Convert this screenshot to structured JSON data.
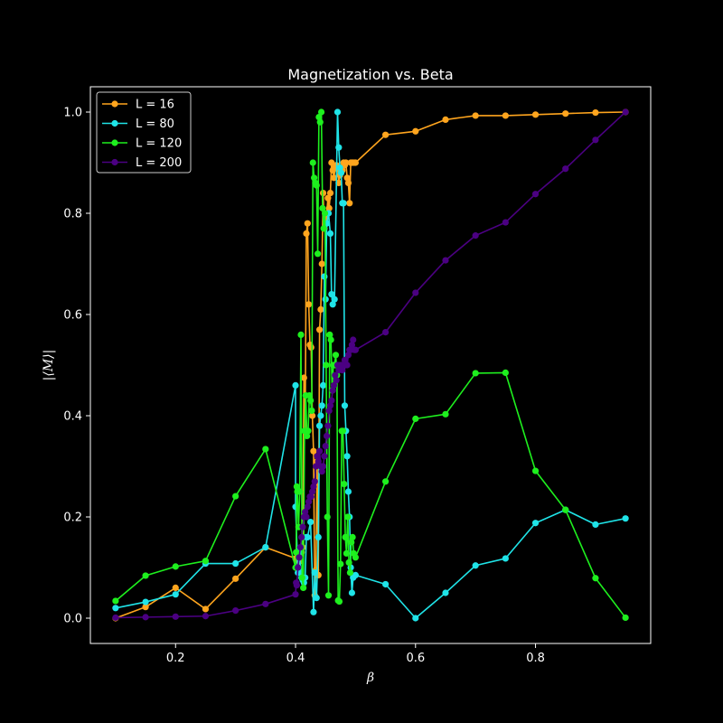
{
  "chart_data": {
    "type": "line",
    "title": "Magnetization vs. Beta",
    "xlabel": "β",
    "ylabel": "|⟨M⟩|",
    "xlim": [
      0.058,
      0.992
    ],
    "ylim": [
      -0.05,
      1.05
    ],
    "xticks": [
      "0.2",
      "0.4",
      "0.6",
      "0.8"
    ],
    "yticks": [
      "0.0",
      "0.2",
      "0.4",
      "0.6",
      "0.8",
      "1.0"
    ],
    "grid": false,
    "legend_position": "top-left",
    "series": [
      {
        "name": "L = 16",
        "color": "#ffa51e",
        "x": [
          0.1,
          0.15,
          0.2,
          0.25,
          0.3,
          0.35,
          0.4,
          0.402,
          0.404,
          0.406,
          0.408,
          0.41,
          0.412,
          0.414,
          0.416,
          0.418,
          0.42,
          0.422,
          0.424,
          0.426,
          0.428,
          0.43,
          0.432,
          0.434,
          0.436,
          0.438,
          0.44,
          0.442,
          0.444,
          0.446,
          0.448,
          0.45,
          0.452,
          0.454,
          0.456,
          0.458,
          0.46,
          0.462,
          0.464,
          0.466,
          0.468,
          0.47,
          0.472,
          0.474,
          0.476,
          0.478,
          0.48,
          0.482,
          0.484,
          0.486,
          0.488,
          0.49,
          0.492,
          0.494,
          0.496,
          0.498,
          0.5,
          0.55,
          0.6,
          0.65,
          0.7,
          0.75,
          0.8,
          0.85,
          0.9,
          0.95
        ],
        "values": [
          0.0,
          0.022,
          0.06,
          0.018,
          0.078,
          0.14,
          0.118,
          0.115,
          0.12,
          0.112,
          0.125,
          0.13,
          0.14,
          0.475,
          0.37,
          0.76,
          0.78,
          0.62,
          0.54,
          0.535,
          0.4,
          0.33,
          0.045,
          0.095,
          0.31,
          0.085,
          0.57,
          0.61,
          0.7,
          0.84,
          0.77,
          0.79,
          0.8,
          0.83,
          0.81,
          0.84,
          0.9,
          0.885,
          0.87,
          0.89,
          0.895,
          0.89,
          0.86,
          0.875,
          0.88,
          0.885,
          0.9,
          0.895,
          0.9,
          0.87,
          0.86,
          0.82,
          0.9,
          0.9,
          0.9,
          0.9,
          0.9,
          0.955,
          0.962,
          0.985,
          0.993,
          0.993,
          0.995,
          0.997,
          0.999,
          1.0
        ]
      },
      {
        "name": "L = 80",
        "color": "#1fe4e8",
        "x": [
          0.1,
          0.15,
          0.2,
          0.25,
          0.3,
          0.35,
          0.4,
          0.4,
          0.404,
          0.406,
          0.41,
          0.412,
          0.414,
          0.416,
          0.418,
          0.42,
          0.425,
          0.43,
          0.432,
          0.435,
          0.438,
          0.44,
          0.442,
          0.444,
          0.446,
          0.448,
          0.45,
          0.452,
          0.455,
          0.458,
          0.46,
          0.462,
          0.465,
          0.47,
          0.472,
          0.474,
          0.476,
          0.478,
          0.48,
          0.482,
          0.484,
          0.486,
          0.488,
          0.49,
          0.492,
          0.494,
          0.496,
          0.5,
          0.55,
          0.6,
          0.65,
          0.7,
          0.75,
          0.8,
          0.85,
          0.9,
          0.95
        ],
        "values": [
          0.02,
          0.032,
          0.047,
          0.108,
          0.108,
          0.14,
          0.46,
          0.22,
          0.09,
          0.13,
          0.08,
          0.075,
          0.07,
          0.08,
          0.16,
          0.16,
          0.19,
          0.012,
          0.09,
          0.04,
          0.16,
          0.38,
          0.4,
          0.42,
          0.46,
          0.675,
          0.63,
          0.78,
          0.8,
          0.76,
          0.64,
          0.62,
          0.63,
          1.0,
          0.93,
          0.89,
          0.88,
          0.82,
          0.82,
          0.42,
          0.37,
          0.32,
          0.25,
          0.2,
          0.1,
          0.05,
          0.08,
          0.085,
          0.067,
          0.0,
          0.05,
          0.104,
          0.118,
          0.188,
          0.214,
          0.185,
          0.197
        ]
      },
      {
        "name": "L = 120",
        "color": "#1ef01e",
        "x": [
          0.1,
          0.15,
          0.2,
          0.25,
          0.3,
          0.35,
          0.4,
          0.401,
          0.402,
          0.403,
          0.405,
          0.407,
          0.409,
          0.411,
          0.413,
          0.415,
          0.417,
          0.419,
          0.421,
          0.423,
          0.425,
          0.427,
          0.429,
          0.431,
          0.433,
          0.435,
          0.437,
          0.439,
          0.441,
          0.443,
          0.445,
          0.447,
          0.449,
          0.451,
          0.453,
          0.455,
          0.457,
          0.459,
          0.461,
          0.463,
          0.465,
          0.467,
          0.469,
          0.471,
          0.473,
          0.475,
          0.477,
          0.479,
          0.481,
          0.483,
          0.485,
          0.487,
          0.489,
          0.491,
          0.493,
          0.495,
          0.497,
          0.5,
          0.55,
          0.6,
          0.65,
          0.7,
          0.75,
          0.8,
          0.85,
          0.9,
          0.95
        ],
        "values": [
          0.034,
          0.084,
          0.102,
          0.113,
          0.241,
          0.334,
          0.1,
          0.13,
          0.26,
          0.25,
          0.18,
          0.25,
          0.56,
          0.08,
          0.06,
          0.37,
          0.44,
          0.36,
          0.37,
          0.44,
          0.43,
          0.41,
          0.9,
          0.87,
          0.86,
          0.855,
          0.72,
          0.99,
          0.98,
          1.0,
          0.81,
          0.77,
          0.8,
          0.5,
          0.2,
          0.045,
          0.56,
          0.55,
          0.45,
          0.5,
          0.5,
          0.52,
          0.48,
          0.035,
          0.033,
          0.107,
          0.37,
          0.37,
          0.265,
          0.16,
          0.128,
          0.2,
          0.11,
          0.09,
          0.15,
          0.16,
          0.128,
          0.12,
          0.27,
          0.394,
          0.403,
          0.484,
          0.485,
          0.291,
          0.214,
          0.079,
          0.001
        ]
      },
      {
        "name": "L = 200",
        "color": "#4b0082",
        "x": [
          0.1,
          0.15,
          0.2,
          0.25,
          0.3,
          0.35,
          0.4,
          0.401,
          0.402,
          0.404,
          0.406,
          0.408,
          0.41,
          0.412,
          0.414,
          0.416,
          0.418,
          0.42,
          0.422,
          0.424,
          0.426,
          0.428,
          0.43,
          0.432,
          0.434,
          0.436,
          0.438,
          0.44,
          0.442,
          0.444,
          0.446,
          0.448,
          0.45,
          0.452,
          0.454,
          0.456,
          0.458,
          0.46,
          0.462,
          0.464,
          0.466,
          0.468,
          0.47,
          0.472,
          0.474,
          0.476,
          0.478,
          0.48,
          0.482,
          0.484,
          0.486,
          0.488,
          0.49,
          0.492,
          0.494,
          0.496,
          0.498,
          0.5,
          0.55,
          0.6,
          0.65,
          0.7,
          0.75,
          0.8,
          0.85,
          0.9,
          0.95
        ],
        "values": [
          0.001,
          0.002,
          0.003,
          0.004,
          0.015,
          0.028,
          0.047,
          0.07,
          0.065,
          0.1,
          0.12,
          0.14,
          0.16,
          0.18,
          0.2,
          0.21,
          0.2,
          0.22,
          0.23,
          0.24,
          0.24,
          0.25,
          0.26,
          0.27,
          0.3,
          0.32,
          0.31,
          0.33,
          0.3,
          0.29,
          0.3,
          0.32,
          0.34,
          0.36,
          0.38,
          0.41,
          0.42,
          0.43,
          0.45,
          0.46,
          0.48,
          0.47,
          0.5,
          0.49,
          0.5,
          0.5,
          0.49,
          0.5,
          0.51,
          0.5,
          0.5,
          0.52,
          0.53,
          0.53,
          0.54,
          0.55,
          0.53,
          0.53,
          0.565,
          0.643,
          0.707,
          0.756,
          0.782,
          0.838,
          0.888,
          0.945,
          1.0
        ]
      }
    ]
  }
}
